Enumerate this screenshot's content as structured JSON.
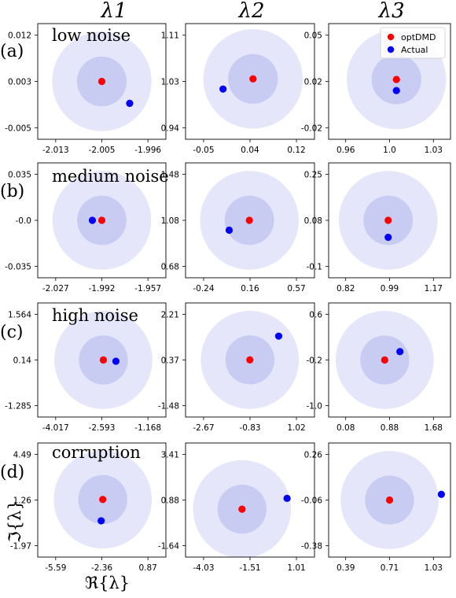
{
  "columns": [
    "λ1",
    "λ2",
    "λ3"
  ],
  "row_labels": [
    "(a)",
    "(b)",
    "(c)",
    "(d)"
  ],
  "titles": [
    "low noise",
    "medium noise",
    "high noise",
    "corruption"
  ],
  "legend": {
    "position": "top-right",
    "entries": [
      {
        "label": "optDMD",
        "color": "#ff0000"
      },
      {
        "label": "Actual",
        "color": "#0000ff"
      }
    ]
  },
  "xlabel": "ℜ{λ}",
  "ylabel": "ℑ{λ}",
  "colors": {
    "optdmd": "#ff0000",
    "actual": "#0000ff",
    "outer_disk": "#e6e6fa",
    "inner_disk": "#c8cbf2"
  },
  "chart_data": [
    {
      "type": "scatter",
      "row": 0,
      "col": 0,
      "xticks": [
        "-2.013",
        "-2.005",
        "-1.996"
      ],
      "yticks": [
        "0.012",
        "0.003",
        "-0.005"
      ],
      "xlim": [
        -2.0165,
        -1.9935
      ],
      "ylim": [
        -0.0078,
        0.0138
      ],
      "series": [
        {
          "name": "optDMD",
          "x": [
            -2.005
          ],
          "y": [
            0.003
          ]
        },
        {
          "name": "Actual",
          "x": [
            -2.0
          ],
          "y": [
            -0.0011
          ]
        }
      ]
    },
    {
      "type": "scatter",
      "row": 0,
      "col": 1,
      "xticks": [
        "-0.05",
        "0.04",
        "0.12"
      ],
      "yticks": [
        "1.11",
        "1.03",
        "0.94"
      ],
      "xlim": [
        -0.0725,
        0.1425
      ],
      "ylim": [
        0.911,
        1.139
      ],
      "series": [
        {
          "name": "optDMD",
          "x": [
            0.04
          ],
          "y": [
            1.03
          ]
        },
        {
          "name": "Actual",
          "x": [
            -0.01
          ],
          "y": [
            1.01
          ]
        }
      ]
    },
    {
      "type": "scatter",
      "row": 0,
      "col": 2,
      "xticks": [
        "0.96",
        "1.0",
        "1.03"
      ],
      "yticks": [
        "0.05",
        "0.02",
        "-0.02"
      ],
      "xlim": [
        0.9505,
        1.0395
      ],
      "ylim": [
        -0.0237,
        0.0608
      ],
      "series": [
        {
          "name": "optDMD",
          "x": [
            1.0
          ],
          "y": [
            0.02
          ]
        },
        {
          "name": "Actual",
          "x": [
            1.0
          ],
          "y": [
            0.0119
          ]
        }
      ]
    },
    {
      "type": "scatter",
      "row": 1,
      "col": 0,
      "xticks": [
        "-2.027",
        "-1.992",
        "-1.957"
      ],
      "yticks": [
        "0.035",
        "-0.0",
        "-0.035"
      ],
      "xlim": [
        -2.036,
        -1.948
      ],
      "ylim": [
        -0.047,
        0.047
      ],
      "series": [
        {
          "name": "optDMD",
          "x": [
            -1.992
          ],
          "y": [
            0.0
          ]
        },
        {
          "name": "Actual",
          "x": [
            -1.9985
          ],
          "y": [
            0.0
          ]
        }
      ]
    },
    {
      "type": "scatter",
      "row": 1,
      "col": 1,
      "xticks": [
        "-0.24",
        "0.16",
        "0.57"
      ],
      "yticks": [
        "1.48",
        "1.08",
        "0.68"
      ],
      "xlim": [
        -0.345,
        0.675
      ],
      "ylim": [
        0.555,
        1.605
      ],
      "series": [
        {
          "name": "optDMD",
          "x": [
            0.16
          ],
          "y": [
            1.08
          ]
        },
        {
          "name": "Actual",
          "x": [
            0.0
          ],
          "y": [
            0.99
          ]
        }
      ]
    },
    {
      "type": "scatter",
      "row": 1,
      "col": 2,
      "xticks": [
        "0.82",
        "0.99",
        "1.17"
      ],
      "yticks": [
        "0.25",
        "0.08",
        "-0.1"
      ],
      "xlim": [
        0.775,
        1.215
      ],
      "ylim": [
        -0.14,
        0.3
      ],
      "series": [
        {
          "name": "optDMD",
          "x": [
            0.99
          ],
          "y": [
            0.08
          ]
        },
        {
          "name": "Actual",
          "x": [
            0.99
          ],
          "y": [
            0.015
          ]
        }
      ]
    },
    {
      "type": "scatter",
      "row": 2,
      "col": 0,
      "xticks": [
        "-4.017",
        "-2.593",
        "-1.168"
      ],
      "yticks": [
        "1.564",
        "0.14",
        "-1.285"
      ],
      "xlim": [
        -4.38,
        -0.806
      ],
      "ylim": [
        -1.685,
        1.964
      ],
      "series": [
        {
          "name": "optDMD",
          "x": [
            -2.55
          ],
          "y": [
            0.14
          ]
        },
        {
          "name": "Actual",
          "x": [
            -2.2
          ],
          "y": [
            0.1
          ]
        }
      ]
    },
    {
      "type": "scatter",
      "row": 2,
      "col": 1,
      "xticks": [
        "-2.67",
        "-0.83",
        "1.02"
      ],
      "yticks": [
        "2.21",
        "0.37",
        "-1.48"
      ],
      "xlim": [
        -3.13,
        1.48
      ],
      "ylim": [
        -1.99,
        2.72
      ],
      "series": [
        {
          "name": "optDMD",
          "x": [
            -0.83
          ],
          "y": [
            0.37
          ]
        },
        {
          "name": "Actual",
          "x": [
            0.2
          ],
          "y": [
            1.35
          ]
        }
      ]
    },
    {
      "type": "scatter",
      "row": 2,
      "col": 2,
      "xticks": [
        "0.08",
        "0.88",
        "1.68"
      ],
      "yticks": [
        "0.6",
        "-0.2",
        "-1.0"
      ],
      "xlim": [
        -0.12,
        1.88
      ],
      "ylim": [
        -1.22,
        0.82
      ],
      "series": [
        {
          "name": "optDMD",
          "x": [
            0.8
          ],
          "y": [
            -0.2
          ]
        },
        {
          "name": "Actual",
          "x": [
            1.05
          ],
          "y": [
            -0.05
          ]
        }
      ]
    },
    {
      "type": "scatter",
      "row": 3,
      "col": 0,
      "xticks": [
        "-5.59",
        "-2.36",
        "0.87"
      ],
      "yticks": [
        "4.49",
        "1.26",
        "-1.97"
      ],
      "xlim": [
        -6.4,
        1.68
      ],
      "ylim": [
        -2.8,
        5.32
      ],
      "series": [
        {
          "name": "optDMD",
          "x": [
            -2.3
          ],
          "y": [
            1.3
          ]
        },
        {
          "name": "Actual",
          "x": [
            -2.4
          ],
          "y": [
            -0.22
          ]
        }
      ]
    },
    {
      "type": "scatter",
      "row": 3,
      "col": 1,
      "xticks": [
        "-4.03",
        "-1.51",
        "1.01"
      ],
      "yticks": [
        "3.41",
        "0.88",
        "-1.64"
      ],
      "xlim": [
        -4.66,
        1.64
      ],
      "ylim": [
        -2.27,
        4.04
      ],
      "series": [
        {
          "name": "optDMD",
          "x": [
            -1.9
          ],
          "y": [
            0.38
          ]
        },
        {
          "name": "Actual",
          "x": [
            0.3
          ],
          "y": [
            0.98
          ]
        }
      ]
    },
    {
      "type": "scatter",
      "row": 3,
      "col": 2,
      "xticks": [
        "0.39",
        "0.71",
        "1.03"
      ],
      "yticks": [
        "0.26",
        "-0.06",
        "-0.38"
      ],
      "xlim": [
        0.31,
        1.11
      ],
      "ylim": [
        -0.46,
        0.34
      ],
      "series": [
        {
          "name": "optDMD",
          "x": [
            0.71
          ],
          "y": [
            -0.06
          ]
        },
        {
          "name": "Actual",
          "x": [
            1.05
          ],
          "y": [
            -0.02
          ]
        }
      ]
    }
  ]
}
